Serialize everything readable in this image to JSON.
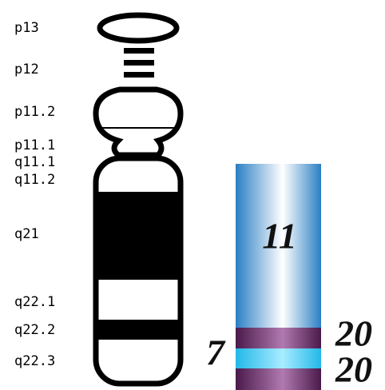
{
  "ideogram": {
    "bands": [
      "p13",
      "p12",
      "p11.2",
      "p11.1",
      "q11.1",
      "q11.2",
      "q21",
      "q22.1",
      "q22.2",
      "q22.3"
    ]
  },
  "segments": {
    "top": "11",
    "upper_band": "20",
    "middle": "7",
    "lower_band": "20"
  }
}
